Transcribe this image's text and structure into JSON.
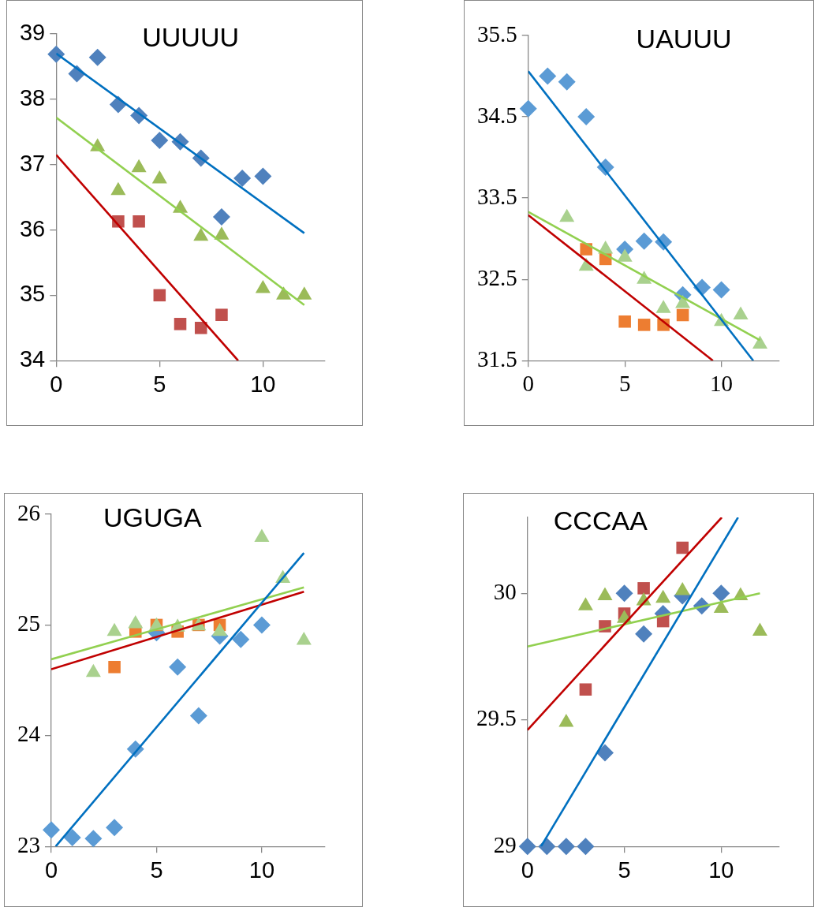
{
  "chart_data": [
    {
      "type": "scatter",
      "title": "UUUUU",
      "xlim": [
        0,
        13
      ],
      "xticks": [
        0,
        5,
        10
      ],
      "ylim": [
        34,
        39
      ],
      "yticks": [
        34,
        35,
        36,
        37,
        38,
        39
      ],
      "series": [
        {
          "marker": "diamond",
          "color": "#4f81bd",
          "x": [
            0,
            1,
            2,
            3,
            4,
            5,
            6,
            7,
            8,
            9,
            10
          ],
          "values": [
            38.69,
            38.39,
            38.64,
            37.92,
            37.75,
            37.37,
            37.35,
            37.1,
            36.2,
            36.79,
            36.82
          ]
        },
        {
          "marker": "square",
          "color": "#c0504d",
          "x": [
            3,
            4,
            5,
            6,
            7,
            8
          ],
          "values": [
            36.13,
            36.13,
            35.0,
            34.56,
            34.5,
            34.7
          ]
        },
        {
          "marker": "triangle",
          "color": "#9bbb59",
          "x": [
            2,
            3,
            4,
            5,
            6,
            7,
            8,
            10,
            11,
            12
          ],
          "values": [
            37.27,
            36.6,
            36.95,
            36.78,
            36.33,
            35.9,
            35.92,
            35.1,
            35.0,
            35.0
          ]
        },
        {
          "type": "line",
          "marker": "none",
          "color": "#0070c0",
          "x": [
            0,
            12
          ],
          "values": [
            38.7,
            35.95
          ]
        },
        {
          "type": "line",
          "marker": "none",
          "color": "#c00000",
          "x": [
            0,
            8.8
          ],
          "values": [
            37.15,
            34
          ]
        },
        {
          "type": "line",
          "marker": "none",
          "color": "#92d050",
          "x": [
            0,
            12
          ],
          "values": [
            37.72,
            34.85
          ]
        }
      ]
    },
    {
      "type": "scatter",
      "title": "UAUUU",
      "xlim": [
        0,
        13
      ],
      "xticks": [
        0,
        5,
        10
      ],
      "ylim": [
        31.5,
        35.5
      ],
      "yticks": [
        31.5,
        32.5,
        33.5,
        34.5,
        35.5
      ],
      "series": [
        {
          "marker": "diamond",
          "color": "#5b9bd5",
          "x": [
            0,
            1,
            2,
            3,
            4,
            5,
            6,
            7,
            8,
            9,
            10
          ],
          "values": [
            34.6,
            35.0,
            34.93,
            34.5,
            33.88,
            32.87,
            32.97,
            32.96,
            32.31,
            32.4,
            32.37
          ]
        },
        {
          "marker": "square",
          "color": "#ed7d31",
          "x": [
            3,
            4,
            5,
            6,
            7,
            8
          ],
          "values": [
            32.87,
            32.75,
            31.98,
            31.94,
            31.94,
            32.06
          ]
        },
        {
          "marker": "triangle",
          "color": "#a9d18e",
          "x": [
            2,
            3,
            4,
            5,
            6,
            7,
            8,
            10,
            11,
            12
          ],
          "values": [
            33.26,
            32.66,
            32.87,
            32.77,
            32.5,
            32.14,
            32.2,
            31.98,
            32.06,
            31.7
          ]
        },
        {
          "type": "line",
          "marker": "none",
          "color": "#0070c0",
          "x": [
            0,
            11.65
          ],
          "values": [
            35.06,
            31.5
          ]
        },
        {
          "type": "line",
          "marker": "none",
          "color": "#c00000",
          "x": [
            0,
            9.56
          ],
          "values": [
            33.29,
            31.5
          ]
        },
        {
          "type": "line",
          "marker": "none",
          "color": "#92d050",
          "x": [
            0,
            12
          ],
          "values": [
            33.33,
            31.75
          ]
        }
      ]
    },
    {
      "type": "scatter",
      "title": "UGUGA",
      "xlim": [
        0,
        13
      ],
      "xticks": [
        0,
        5,
        10
      ],
      "ylim": [
        23,
        26
      ],
      "yticks": [
        23,
        24,
        25,
        26
      ],
      "series": [
        {
          "marker": "diamond",
          "color": "#5b9bd5",
          "x": [
            0,
            1,
            2,
            3,
            4,
            5,
            6,
            7,
            8,
            9,
            10
          ],
          "values": [
            23.15,
            23.08,
            23.07,
            23.17,
            23.88,
            24.93,
            24.62,
            24.18,
            24.9,
            24.87,
            25.0
          ]
        },
        {
          "marker": "square",
          "color": "#ed7d31",
          "x": [
            3,
            4,
            5,
            6,
            7,
            8
          ],
          "values": [
            24.62,
            24.94,
            25.0,
            24.94,
            25.0,
            25.0
          ]
        },
        {
          "marker": "triangle",
          "color": "#a9d18e",
          "x": [
            2,
            3,
            4,
            5,
            6,
            7,
            8,
            10,
            11,
            12
          ],
          "values": [
            24.57,
            24.94,
            25.01,
            24.99,
            24.98,
            24.99,
            24.94,
            25.79,
            25.42,
            24.86
          ]
        },
        {
          "type": "line",
          "marker": "none",
          "color": "#0070c0",
          "x": [
            0.21,
            12
          ],
          "values": [
            23,
            25.65
          ]
        },
        {
          "type": "line",
          "marker": "none",
          "color": "#c00000",
          "x": [
            0,
            12
          ],
          "values": [
            24.6,
            25.3
          ]
        },
        {
          "type": "line",
          "marker": "none",
          "color": "#92d050",
          "x": [
            0,
            12
          ],
          "values": [
            24.69,
            25.34
          ]
        }
      ]
    },
    {
      "type": "scatter",
      "title": "CCCAA",
      "xlim": [
        0,
        13
      ],
      "xticks": [
        0,
        5,
        10
      ],
      "ylim": [
        29,
        30.3
      ],
      "yticks": [
        29,
        29.5,
        30
      ],
      "series": [
        {
          "marker": "diamond",
          "color": "#4f81bd",
          "x": [
            0,
            1,
            2,
            3,
            4,
            5,
            6,
            7,
            8,
            9,
            10
          ],
          "values": [
            29.0,
            29.0,
            29.0,
            29.0,
            29.37,
            30.0,
            29.84,
            29.92,
            29.99,
            29.95,
            30.0
          ]
        },
        {
          "marker": "square",
          "color": "#c0504d",
          "x": [
            3,
            4,
            5,
            6,
            7,
            8
          ],
          "values": [
            29.62,
            29.87,
            29.92,
            30.02,
            29.89,
            30.18
          ]
        },
        {
          "marker": "triangle",
          "color": "#9bbb59",
          "x": [
            2,
            3,
            4,
            5,
            6,
            7,
            8,
            10,
            11,
            12
          ],
          "values": [
            29.49,
            29.95,
            29.99,
            29.9,
            29.97,
            29.98,
            30.01,
            29.94,
            29.99,
            29.85
          ]
        },
        {
          "type": "line",
          "marker": "none",
          "color": "#0070c0",
          "x": [
            0.7,
            10.87
          ],
          "values": [
            29.0,
            30.3
          ]
        },
        {
          "type": "line",
          "marker": "none",
          "color": "#c00000",
          "x": [
            0,
            10.03
          ],
          "values": [
            29.46,
            30.3
          ]
        },
        {
          "type": "line",
          "marker": "none",
          "color": "#92d050",
          "x": [
            0,
            12
          ],
          "values": [
            29.79,
            30.0
          ]
        }
      ]
    }
  ]
}
